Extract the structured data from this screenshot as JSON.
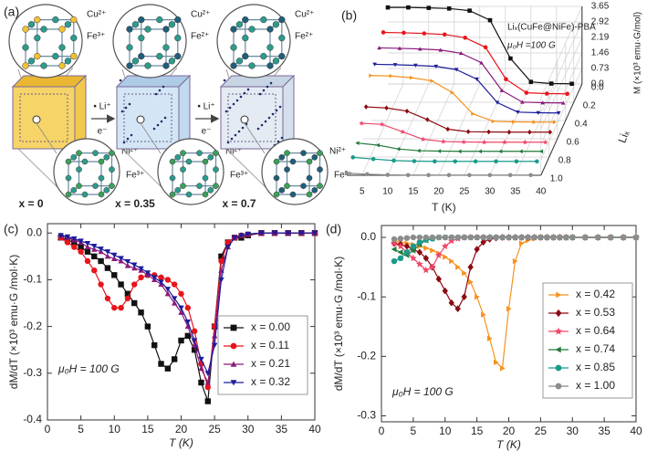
{
  "diagram": {
    "label": "(a)",
    "stages": [
      {
        "top_ions": [
          "Cu²⁺",
          "Fe³⁺"
        ],
        "bottom_ions": [
          "Ni²⁺",
          "Fe³⁺"
        ],
        "composition": "x = 0"
      },
      {
        "top_ions": [
          "Cu²⁺",
          "Fe²⁺"
        ],
        "bottom_ions": [
          "Ni²⁺",
          "Fe³⁺"
        ],
        "composition": "x = 0.35"
      },
      {
        "top_ions": [
          "Cu²⁺",
          "Fe²⁺"
        ],
        "bottom_ions": [
          "Ni²⁺",
          "Fe²⁺"
        ],
        "composition": "x = 0.7"
      }
    ],
    "arrows": [
      {
        "top": "• Li⁺",
        "bottom": "e⁻"
      },
      {
        "top": "• Li⁺",
        "bottom": "e⁻"
      }
    ]
  },
  "chart_data": [
    {
      "type": "waterfall3d",
      "panel_label": "(b)",
      "title": "Liₓ(CuFe@NiFe)-PBA",
      "subtitle": "μ₀H =100 G",
      "xlabel": "T (K)",
      "ylabel": "M (×10³ emu·G/mol)",
      "zlabel": "Liₓ",
      "xlim": [
        2,
        40
      ],
      "xticks": [
        5,
        10,
        15,
        20,
        25,
        30,
        35,
        40
      ],
      "ylim": [
        0,
        3.65
      ],
      "yticks": [
        {
          "value": 0,
          "label": "0.0"
        },
        0.73,
        1.46,
        2.19,
        2.92,
        3.65
      ],
      "zlim": [
        0,
        1
      ],
      "zticks": [
        {
          "value": 0,
          "label": "0.0"
        },
        0.2,
        0.4,
        0.6,
        0.8,
        {
          "value": 1,
          "label": "1.0"
        }
      ],
      "grid": true,
      "x": [
        2,
        6,
        10,
        14,
        18,
        22,
        26,
        30,
        34,
        38
      ],
      "series": [
        {
          "z": 0,
          "color": "#111111",
          "marker": "square",
          "values": [
            3.6,
            3.6,
            3.58,
            3.55,
            3.45,
            3.0,
            1.2,
            0.1,
            0.02,
            0.01
          ]
        },
        {
          "z": 0.11,
          "color": "#e8141c",
          "marker": "circle",
          "values": [
            2.9,
            2.88,
            2.85,
            2.8,
            2.65,
            2.2,
            0.7,
            0.06,
            0.02,
            0.01
          ]
        },
        {
          "z": 0.21,
          "color": "#8a1a7a",
          "marker": "triangle-up",
          "values": [
            2.6,
            2.58,
            2.55,
            2.5,
            2.35,
            1.9,
            0.6,
            0.05,
            0.02,
            0.01
          ]
        },
        {
          "z": 0.32,
          "color": "#1c1c9c",
          "marker": "triangle-down",
          "values": [
            2.3,
            2.28,
            2.25,
            2.2,
            2.05,
            1.6,
            0.5,
            0.05,
            0.02,
            0.01
          ]
        },
        {
          "z": 0.42,
          "color": "#f7921e",
          "marker": "triangle-right",
          "values": [
            2.2,
            2.18,
            2.1,
            1.95,
            1.4,
            0.4,
            0.05,
            0.02,
            0.01,
            0.01
          ]
        },
        {
          "z": 0.53,
          "color": "#8b0a12",
          "marker": "diamond",
          "values": [
            1.2,
            1.15,
            1.0,
            0.6,
            0.15,
            0.03,
            0.02,
            0.01,
            0.01,
            0.01
          ]
        },
        {
          "z": 0.64,
          "color": "#f0466a",
          "marker": "star",
          "values": [
            0.9,
            0.85,
            0.5,
            0.15,
            0.04,
            0.02,
            0.01,
            0.01,
            0.01,
            0.01
          ]
        },
        {
          "z": 0.74,
          "color": "#227a3a",
          "marker": "triangle-left",
          "values": [
            0.4,
            0.3,
            0.12,
            0.04,
            0.02,
            0.01,
            0.01,
            0.01,
            0.01,
            0.01
          ]
        },
        {
          "z": 0.85,
          "color": "#1a9a8a",
          "marker": "circle",
          "values": [
            0.2,
            0.12,
            0.05,
            0.02,
            0.01,
            0.01,
            0.01,
            0.01,
            0.01,
            0.01
          ]
        },
        {
          "z": 1,
          "color": "#8c8c8c",
          "marker": "circle",
          "values": [
            0.1,
            0.05,
            0.02,
            0.01,
            0.01,
            0.01,
            0.01,
            0.01,
            0.01,
            0.01
          ]
        }
      ]
    },
    {
      "type": "line",
      "panel_label": "(c)",
      "xlabel": "T (K)",
      "ylabel": "dM/dT (×10³ emu·G /mol·K)",
      "annotation": "μ₀H = 100 G",
      "legend": "lower right",
      "xlim": [
        0,
        40
      ],
      "xticks": [
        0,
        5,
        10,
        15,
        20,
        25,
        30,
        35,
        40
      ],
      "ylim": [
        -0.4,
        0.02
      ],
      "yticks": [
        -0.4,
        -0.3,
        -0.2,
        -0.1,
        {
          "value": 0,
          "label": "0.0"
        }
      ],
      "x": [
        2,
        3,
        4,
        5,
        6,
        7,
        8,
        9,
        10,
        11,
        12,
        13,
        14,
        15,
        16,
        17,
        18,
        19,
        20,
        21,
        22,
        23,
        24,
        25,
        26,
        27,
        28,
        29,
        30,
        32,
        34,
        36,
        38,
        40
      ],
      "series": [
        {
          "name": "x = 0.00",
          "color": "#111111",
          "marker": "square",
          "values": [
            -0.01,
            -0.015,
            -0.02,
            -0.03,
            -0.04,
            -0.05,
            -0.06,
            -0.075,
            -0.09,
            -0.11,
            -0.13,
            -0.15,
            -0.17,
            -0.2,
            -0.24,
            -0.28,
            -0.29,
            -0.27,
            -0.23,
            -0.22,
            -0.25,
            -0.32,
            -0.36,
            -0.2,
            -0.05,
            -0.02,
            -0.01,
            -0.01,
            -0.005,
            0,
            0,
            0,
            0,
            0
          ]
        },
        {
          "name": "x = 0.11",
          "color": "#e8141c",
          "marker": "circle",
          "values": [
            -0.01,
            -0.02,
            -0.03,
            -0.04,
            -0.06,
            -0.08,
            -0.11,
            -0.14,
            -0.16,
            -0.16,
            -0.14,
            -0.11,
            -0.095,
            -0.09,
            -0.09,
            -0.095,
            -0.1,
            -0.11,
            -0.13,
            -0.16,
            -0.21,
            -0.28,
            -0.33,
            -0.2,
            -0.06,
            -0.02,
            -0.01,
            -0.005,
            -0.003,
            0,
            0,
            0,
            0,
            0
          ]
        },
        {
          "name": "x = 0.21",
          "color": "#8a1a7a",
          "marker": "triangle-up",
          "values": [
            -0.005,
            -0.01,
            -0.015,
            -0.02,
            -0.03,
            -0.035,
            -0.04,
            -0.05,
            -0.055,
            -0.06,
            -0.07,
            -0.075,
            -0.08,
            -0.09,
            -0.1,
            -0.11,
            -0.13,
            -0.15,
            -0.17,
            -0.2,
            -0.24,
            -0.29,
            -0.32,
            -0.22,
            -0.08,
            -0.03,
            -0.01,
            -0.005,
            -0.003,
            0,
            0,
            0,
            0,
            0
          ]
        },
        {
          "name": "x = 0.32",
          "color": "#1c1c9c",
          "marker": "triangle-down",
          "values": [
            -0.005,
            -0.008,
            -0.012,
            -0.017,
            -0.022,
            -0.028,
            -0.034,
            -0.04,
            -0.047,
            -0.054,
            -0.061,
            -0.068,
            -0.076,
            -0.085,
            -0.095,
            -0.105,
            -0.12,
            -0.14,
            -0.16,
            -0.19,
            -0.23,
            -0.27,
            -0.3,
            -0.24,
            -0.1,
            -0.03,
            -0.01,
            -0.005,
            -0.002,
            0,
            0,
            0,
            0,
            0
          ]
        }
      ]
    },
    {
      "type": "line",
      "panel_label": "(d)",
      "xlabel": "T (K)",
      "ylabel": "dM/dT (×10³ emu·G /mol·K)",
      "annotation": "μ₀H = 100 G",
      "legend": "lower right",
      "xlim": [
        0,
        40
      ],
      "xticks": [
        0,
        5,
        10,
        15,
        20,
        25,
        30,
        35,
        40
      ],
      "ylim": [
        -0.31,
        0.02
      ],
      "yticks": [
        -0.3,
        -0.2,
        -0.1,
        {
          "value": 0,
          "label": "0.0"
        }
      ],
      "x": [
        2,
        3,
        4,
        5,
        6,
        7,
        8,
        9,
        10,
        11,
        12,
        13,
        14,
        15,
        16,
        17,
        18,
        19,
        20,
        21,
        22,
        23,
        24,
        25,
        26,
        27,
        28,
        29,
        30,
        32,
        34,
        36,
        38,
        40
      ],
      "series": [
        {
          "name": "x = 0.42",
          "color": "#f7921e",
          "marker": "triangle-right",
          "values": [
            -0.005,
            -0.008,
            -0.01,
            -0.012,
            -0.015,
            -0.018,
            -0.022,
            -0.027,
            -0.033,
            -0.04,
            -0.05,
            -0.06,
            -0.075,
            -0.1,
            -0.13,
            -0.17,
            -0.21,
            -0.22,
            -0.12,
            -0.04,
            -0.01,
            -0.005,
            -0.002,
            0,
            0,
            0,
            0,
            0,
            0,
            0,
            0,
            0,
            0,
            0
          ]
        },
        {
          "name": "x = 0.53",
          "color": "#8b0a12",
          "marker": "diamond",
          "values": [
            -0.01,
            -0.012,
            -0.015,
            -0.02,
            -0.025,
            -0.035,
            -0.05,
            -0.07,
            -0.09,
            -0.11,
            -0.12,
            -0.1,
            -0.05,
            -0.02,
            -0.008,
            -0.003,
            -0.001,
            0,
            0,
            0,
            0,
            0,
            0,
            0,
            0,
            0,
            0,
            0,
            0,
            0,
            0,
            0,
            0,
            0
          ]
        },
        {
          "name": "x = 0.64",
          "color": "#f0466a",
          "marker": "star",
          "values": [
            -0.01,
            -0.015,
            -0.025,
            -0.035,
            -0.045,
            -0.055,
            -0.05,
            -0.03,
            -0.015,
            -0.006,
            -0.002,
            0,
            0,
            0,
            0,
            0,
            0,
            0,
            0,
            0,
            0,
            0,
            0,
            0,
            0,
            0,
            0,
            0,
            0,
            0,
            0,
            0,
            0,
            0
          ]
        },
        {
          "name": "x = 0.74",
          "color": "#227a3a",
          "marker": "triangle-left",
          "values": [
            -0.02,
            -0.025,
            -0.03,
            -0.022,
            -0.012,
            -0.005,
            -0.002,
            0,
            0,
            0,
            0,
            0,
            0,
            0,
            0,
            0,
            0,
            0,
            0,
            0,
            0,
            0,
            0,
            0,
            0,
            0,
            0,
            0,
            0,
            0,
            0,
            0,
            0,
            0
          ]
        },
        {
          "name": "x = 0.85",
          "color": "#1a9a8a",
          "marker": "circle",
          "values": [
            -0.04,
            -0.035,
            -0.025,
            -0.015,
            -0.008,
            -0.004,
            -0.002,
            0,
            0,
            0,
            0,
            0,
            0,
            0,
            0,
            0,
            0,
            0,
            0,
            0,
            0,
            0,
            0,
            0,
            0,
            0,
            0,
            0,
            0,
            0,
            0,
            0,
            0,
            0
          ]
        },
        {
          "name": "x = 1.00",
          "color": "#8c8c8c",
          "marker": "circle",
          "values": [
            -0.003,
            -0.002,
            -0.001,
            0,
            0,
            0,
            0,
            0,
            0,
            0,
            0,
            0,
            0,
            0,
            0,
            0,
            0,
            0,
            0,
            0,
            0,
            0,
            0,
            0,
            0,
            0,
            0,
            0,
            0,
            0,
            0,
            0,
            0,
            0
          ]
        }
      ]
    }
  ]
}
